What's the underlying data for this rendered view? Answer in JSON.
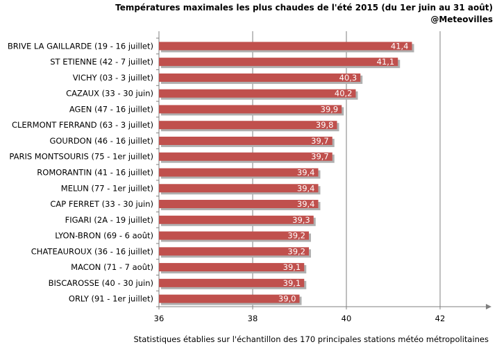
{
  "title": "Températures maximales les plus chaudes  de l'été 2015 (du 1er juin au 31 août)",
  "subtitle": "@Meteovilles",
  "footer": "Statistiques établies sur l'échantillon des 170 principales stations météo métropolitaines",
  "colors": {
    "bar": "#c0504d",
    "bar_shadow": "#b0b0b0",
    "grid": "#7f7f7f",
    "axis": "#7f7f7f"
  },
  "chart_data": {
    "type": "bar",
    "orientation": "horizontal",
    "categories": [
      "BRIVE LA GAILLARDE (19 - 16 juillet)",
      "ST ETIENNE (42 - 7 juillet)",
      "VICHY (03 - 3 juillet)",
      "CAZAUX (33 - 30 juin)",
      "AGEN (47 - 16 juillet)",
      "CLERMONT FERRAND (63 - 3 juillet)",
      "GOURDON (46 - 16 juillet)",
      "PARIS MONTSOURIS (75 - 1er juillet)",
      "ROMORANTIN (41 - 16 juillet)",
      "MELUN (77 - 1er juillet)",
      "CAP FERRET (33 - 30 juin)",
      "FIGARI (2A - 19 juillet)",
      "LYON-BRON (69 - 6 août)",
      "CHATEAUROUX (36 - 16 juillet)",
      "MACON (71 - 7 août)",
      "BISCAROSSE (40 - 30 juin)",
      "ORLY (91 - 1er juillet)"
    ],
    "values": [
      41.4,
      41.1,
      40.3,
      40.2,
      39.9,
      39.8,
      39.7,
      39.7,
      39.4,
      39.4,
      39.4,
      39.3,
      39.2,
      39.2,
      39.1,
      39.1,
      39.0
    ],
    "value_labels": [
      "41,4",
      "41,1",
      "40,3",
      "40,2",
      "39,9",
      "39,8",
      "39,7",
      "39,7",
      "39,4",
      "39,4",
      "39,4",
      "39,3",
      "39,2",
      "39,2",
      "39,1",
      "39,1",
      "39,0"
    ],
    "xlim": [
      36,
      43
    ],
    "xticks": [
      36,
      38,
      40,
      42
    ],
    "xtick_labels": [
      "36",
      "38",
      "40",
      "42"
    ],
    "grid": "vertical",
    "legend": "none"
  }
}
